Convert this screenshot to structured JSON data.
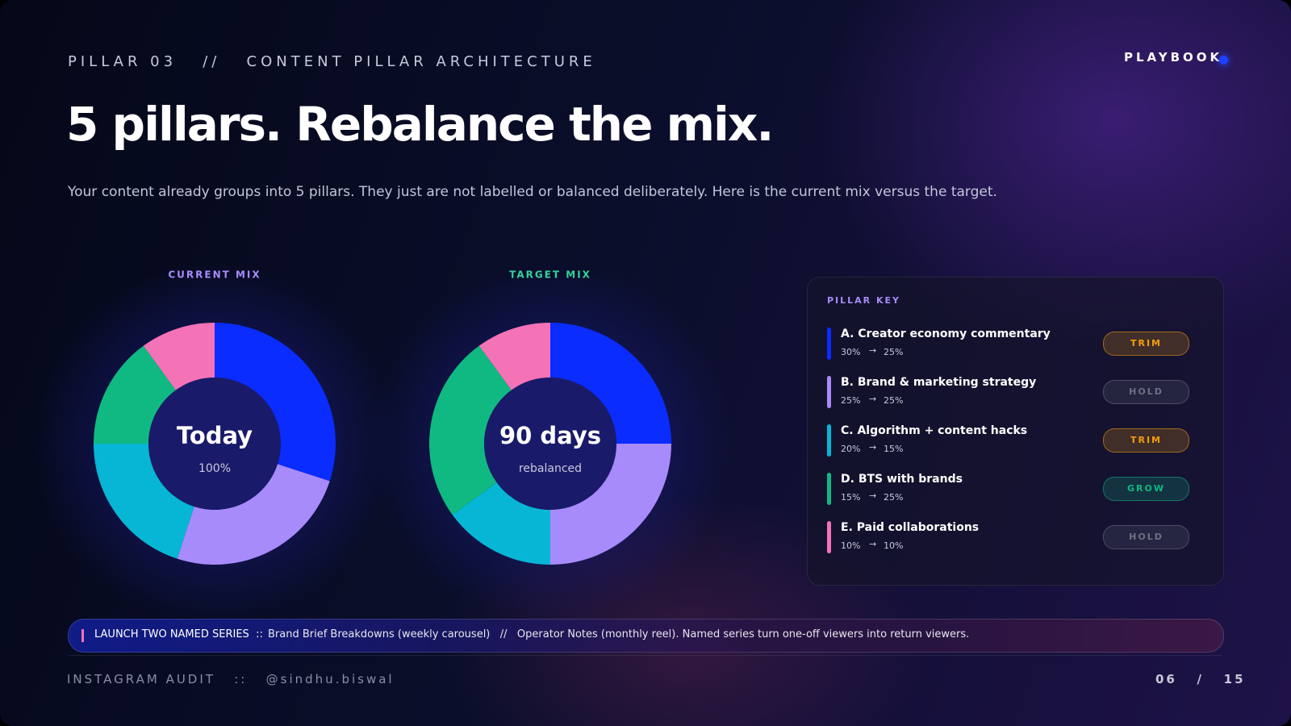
{
  "header": {
    "eyebrow": "PILLAR 03   //   CONTENT PILLAR ARCHITECTURE",
    "brand": "PLAYBOOK",
    "title": "5 pillars. Rebalance the mix.",
    "subtitle": "Your content already groups into 5 pillars. They just are not labelled or balanced deliberately. Here is the current mix versus the target."
  },
  "chart_data": [
    {
      "type": "donut",
      "title": "CURRENT MIX",
      "center_label": "Today",
      "center_sublabel": "100%",
      "values": [
        30,
        25,
        20,
        15,
        10
      ],
      "colors": [
        "#0a2cff",
        "#a78bfa",
        "#06b6d4",
        "#10b981",
        "#f472b6"
      ],
      "title_color": "#a78bfa"
    },
    {
      "type": "donut",
      "title": "TARGET MIX",
      "center_label": "90 days",
      "center_sublabel": "rebalanced",
      "values": [
        25,
        25,
        15,
        25,
        10
      ],
      "colors": [
        "#0a2cff",
        "#a78bfa",
        "#06b6d4",
        "#10b981",
        "#f472b6"
      ],
      "title_color": "#34d399"
    }
  ],
  "pillar_key": {
    "title": "PILLAR KEY",
    "rows": [
      {
        "name": "A. Creator economy commentary",
        "from": "30%",
        "to": "25%",
        "action": "TRIM",
        "color": "#0a2cff",
        "badge_color": "#f59e0b"
      },
      {
        "name": "B. Brand & marketing strategy",
        "from": "25%",
        "to": "25%",
        "action": "HOLD",
        "color": "#a78bfa",
        "badge_color": "#6b7280"
      },
      {
        "name": "C. Algorithm + content hacks",
        "from": "20%",
        "to": "15%",
        "action": "TRIM",
        "color": "#06b6d4",
        "badge_color": "#f59e0b"
      },
      {
        "name": "D. BTS with brands",
        "from": "15%",
        "to": "25%",
        "action": "GROW",
        "color": "#10b981",
        "badge_color": "#10b981"
      },
      {
        "name": "E. Paid collaborations",
        "from": "10%",
        "to": "10%",
        "action": "HOLD",
        "color": "#f472b6",
        "badge_color": "#6b7280"
      }
    ]
  },
  "banner": {
    "lead": "LAUNCH TWO NAMED SERIES  ::",
    "text": "Brand Brief Breakdowns (weekly carousel)   //   Operator Notes (monthly reel). Named series turn one-off viewers into return viewers."
  },
  "footer": {
    "left": "INSTAGRAM AUDIT   ::   @sindhu.biswal",
    "right": "06   /   15"
  }
}
